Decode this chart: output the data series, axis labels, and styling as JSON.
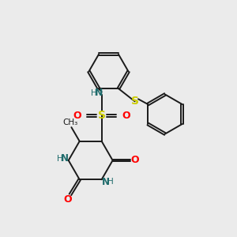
{
  "bg_color": "#ebebeb",
  "bond_color": "#1a1a1a",
  "colors": {
    "N": "#1e6b6b",
    "O": "#ff0000",
    "S": "#cccc00",
    "C": "#1a1a1a",
    "H": "#1e6b6b"
  }
}
